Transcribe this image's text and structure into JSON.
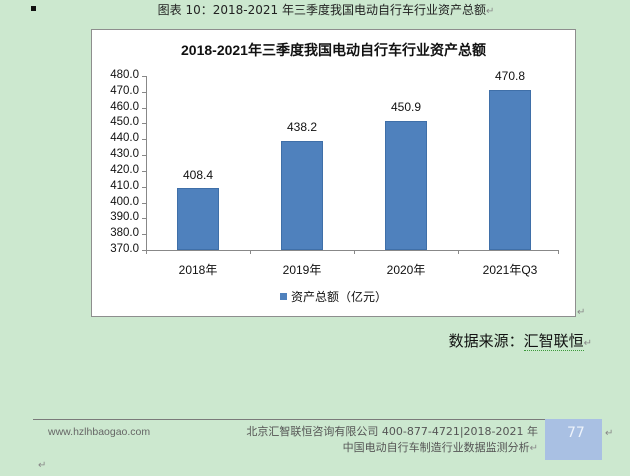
{
  "document": {
    "figure_caption": "图表 10：2018-2021 年三季度我国电动自行车行业资产总额",
    "source_label": "数据来源：",
    "source_value": "汇智联恒",
    "footer": {
      "url": "www.hzlhbaogao.com",
      "company_line1": "北京汇智联恒咨询有限公司  400-877-4721|2018-2021 年",
      "company_line2": "中国电动自行车制造行业数据监测分析",
      "page_number": "77"
    },
    "paragraph_mark": "↵"
  },
  "chart_data": {
    "type": "bar",
    "title": "2018-2021年三季度我国电动自行车行业资产总额",
    "categories": [
      "2018年",
      "2019年",
      "2020年",
      "2021年Q3"
    ],
    "series": [
      {
        "name": "资产总额（亿元）",
        "values": [
          408.4,
          438.2,
          450.9,
          470.8
        ],
        "color": "#4f81bd"
      }
    ],
    "value_labels": [
      "408.4",
      "438.2",
      "450.9",
      "470.8"
    ],
    "xlabel": "",
    "ylabel": "",
    "ylim": [
      370,
      480
    ],
    "yticks": [
      "480.0",
      "470.0",
      "460.0",
      "450.0",
      "440.0",
      "430.0",
      "420.0",
      "410.0",
      "400.0",
      "390.0",
      "380.0",
      "370.0"
    ],
    "grid": false,
    "legend_position": "bottom",
    "legend_label": "资产总额（亿元）"
  }
}
